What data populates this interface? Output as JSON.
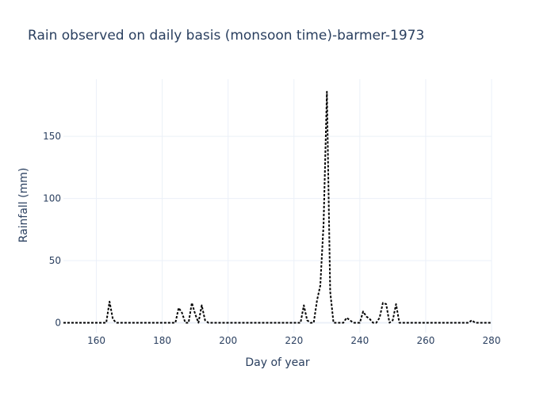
{
  "chart_data": {
    "type": "line",
    "title": "Rain observed on daily basis (monsoon time)-barmer-1973",
    "xlabel": "Day of year",
    "ylabel": "Rainfall (mm)",
    "xlim": [
      150,
      280
    ],
    "ylim": [
      -8,
      196
    ],
    "xticks": [
      160,
      180,
      200,
      220,
      240,
      260,
      280
    ],
    "yticks": [
      0,
      50,
      100,
      150
    ],
    "grid": true,
    "line_color": "#000000",
    "line_style": "dotted",
    "series": [
      {
        "x": [
          150,
          151,
          152,
          153,
          154,
          155,
          156,
          157,
          158,
          159,
          160,
          161,
          162,
          163,
          164,
          165,
          166,
          167,
          168,
          169,
          170,
          171,
          172,
          173,
          174,
          175,
          176,
          177,
          178,
          179,
          180,
          181,
          182,
          183,
          184,
          185,
          186,
          187,
          188,
          189,
          190,
          191,
          192,
          193,
          194,
          195,
          196,
          197,
          198,
          199,
          200,
          201,
          202,
          203,
          204,
          205,
          206,
          207,
          208,
          209,
          210,
          211,
          212,
          213,
          214,
          215,
          216,
          217,
          218,
          219,
          220,
          221,
          222,
          223,
          224,
          225,
          226,
          227,
          228,
          229,
          230,
          231,
          232,
          233,
          234,
          235,
          236,
          237,
          238,
          239,
          240,
          241,
          242,
          243,
          244,
          245,
          246,
          247,
          248,
          249,
          250,
          251,
          252,
          253,
          254,
          255,
          256,
          257,
          258,
          259,
          260,
          261,
          262,
          263,
          264,
          265,
          266,
          267,
          268,
          269,
          270,
          271,
          272,
          273,
          274,
          275,
          276,
          277,
          278,
          279,
          280
        ],
        "y": [
          0,
          0,
          0,
          0,
          0,
          0,
          0,
          0,
          0,
          0,
          0,
          0,
          0,
          0,
          17,
          3,
          0,
          0,
          0,
          0,
          0,
          0,
          0,
          0,
          0,
          0,
          0,
          0,
          0,
          0,
          0,
          0,
          0,
          0,
          0,
          12,
          8,
          0,
          0,
          16,
          7,
          0,
          14,
          2,
          0,
          0,
          0,
          0,
          0,
          0,
          0,
          0,
          0,
          0,
          0,
          0,
          0,
          0,
          0,
          0,
          0,
          0,
          0,
          0,
          0,
          0,
          0,
          0,
          0,
          0,
          0,
          0,
          0,
          14,
          2,
          0,
          0,
          18,
          30,
          80,
          186,
          25,
          0,
          0,
          0,
          0,
          4,
          2,
          0,
          0,
          0,
          9,
          5,
          3,
          0,
          0,
          4,
          16,
          15,
          0,
          2,
          15,
          0,
          0,
          0,
          0,
          0,
          0,
          0,
          0,
          0,
          0,
          0,
          0,
          0,
          0,
          0,
          0,
          0,
          0,
          0,
          0,
          0,
          0,
          2,
          0,
          0,
          0,
          0,
          0,
          0
        ]
      }
    ]
  }
}
